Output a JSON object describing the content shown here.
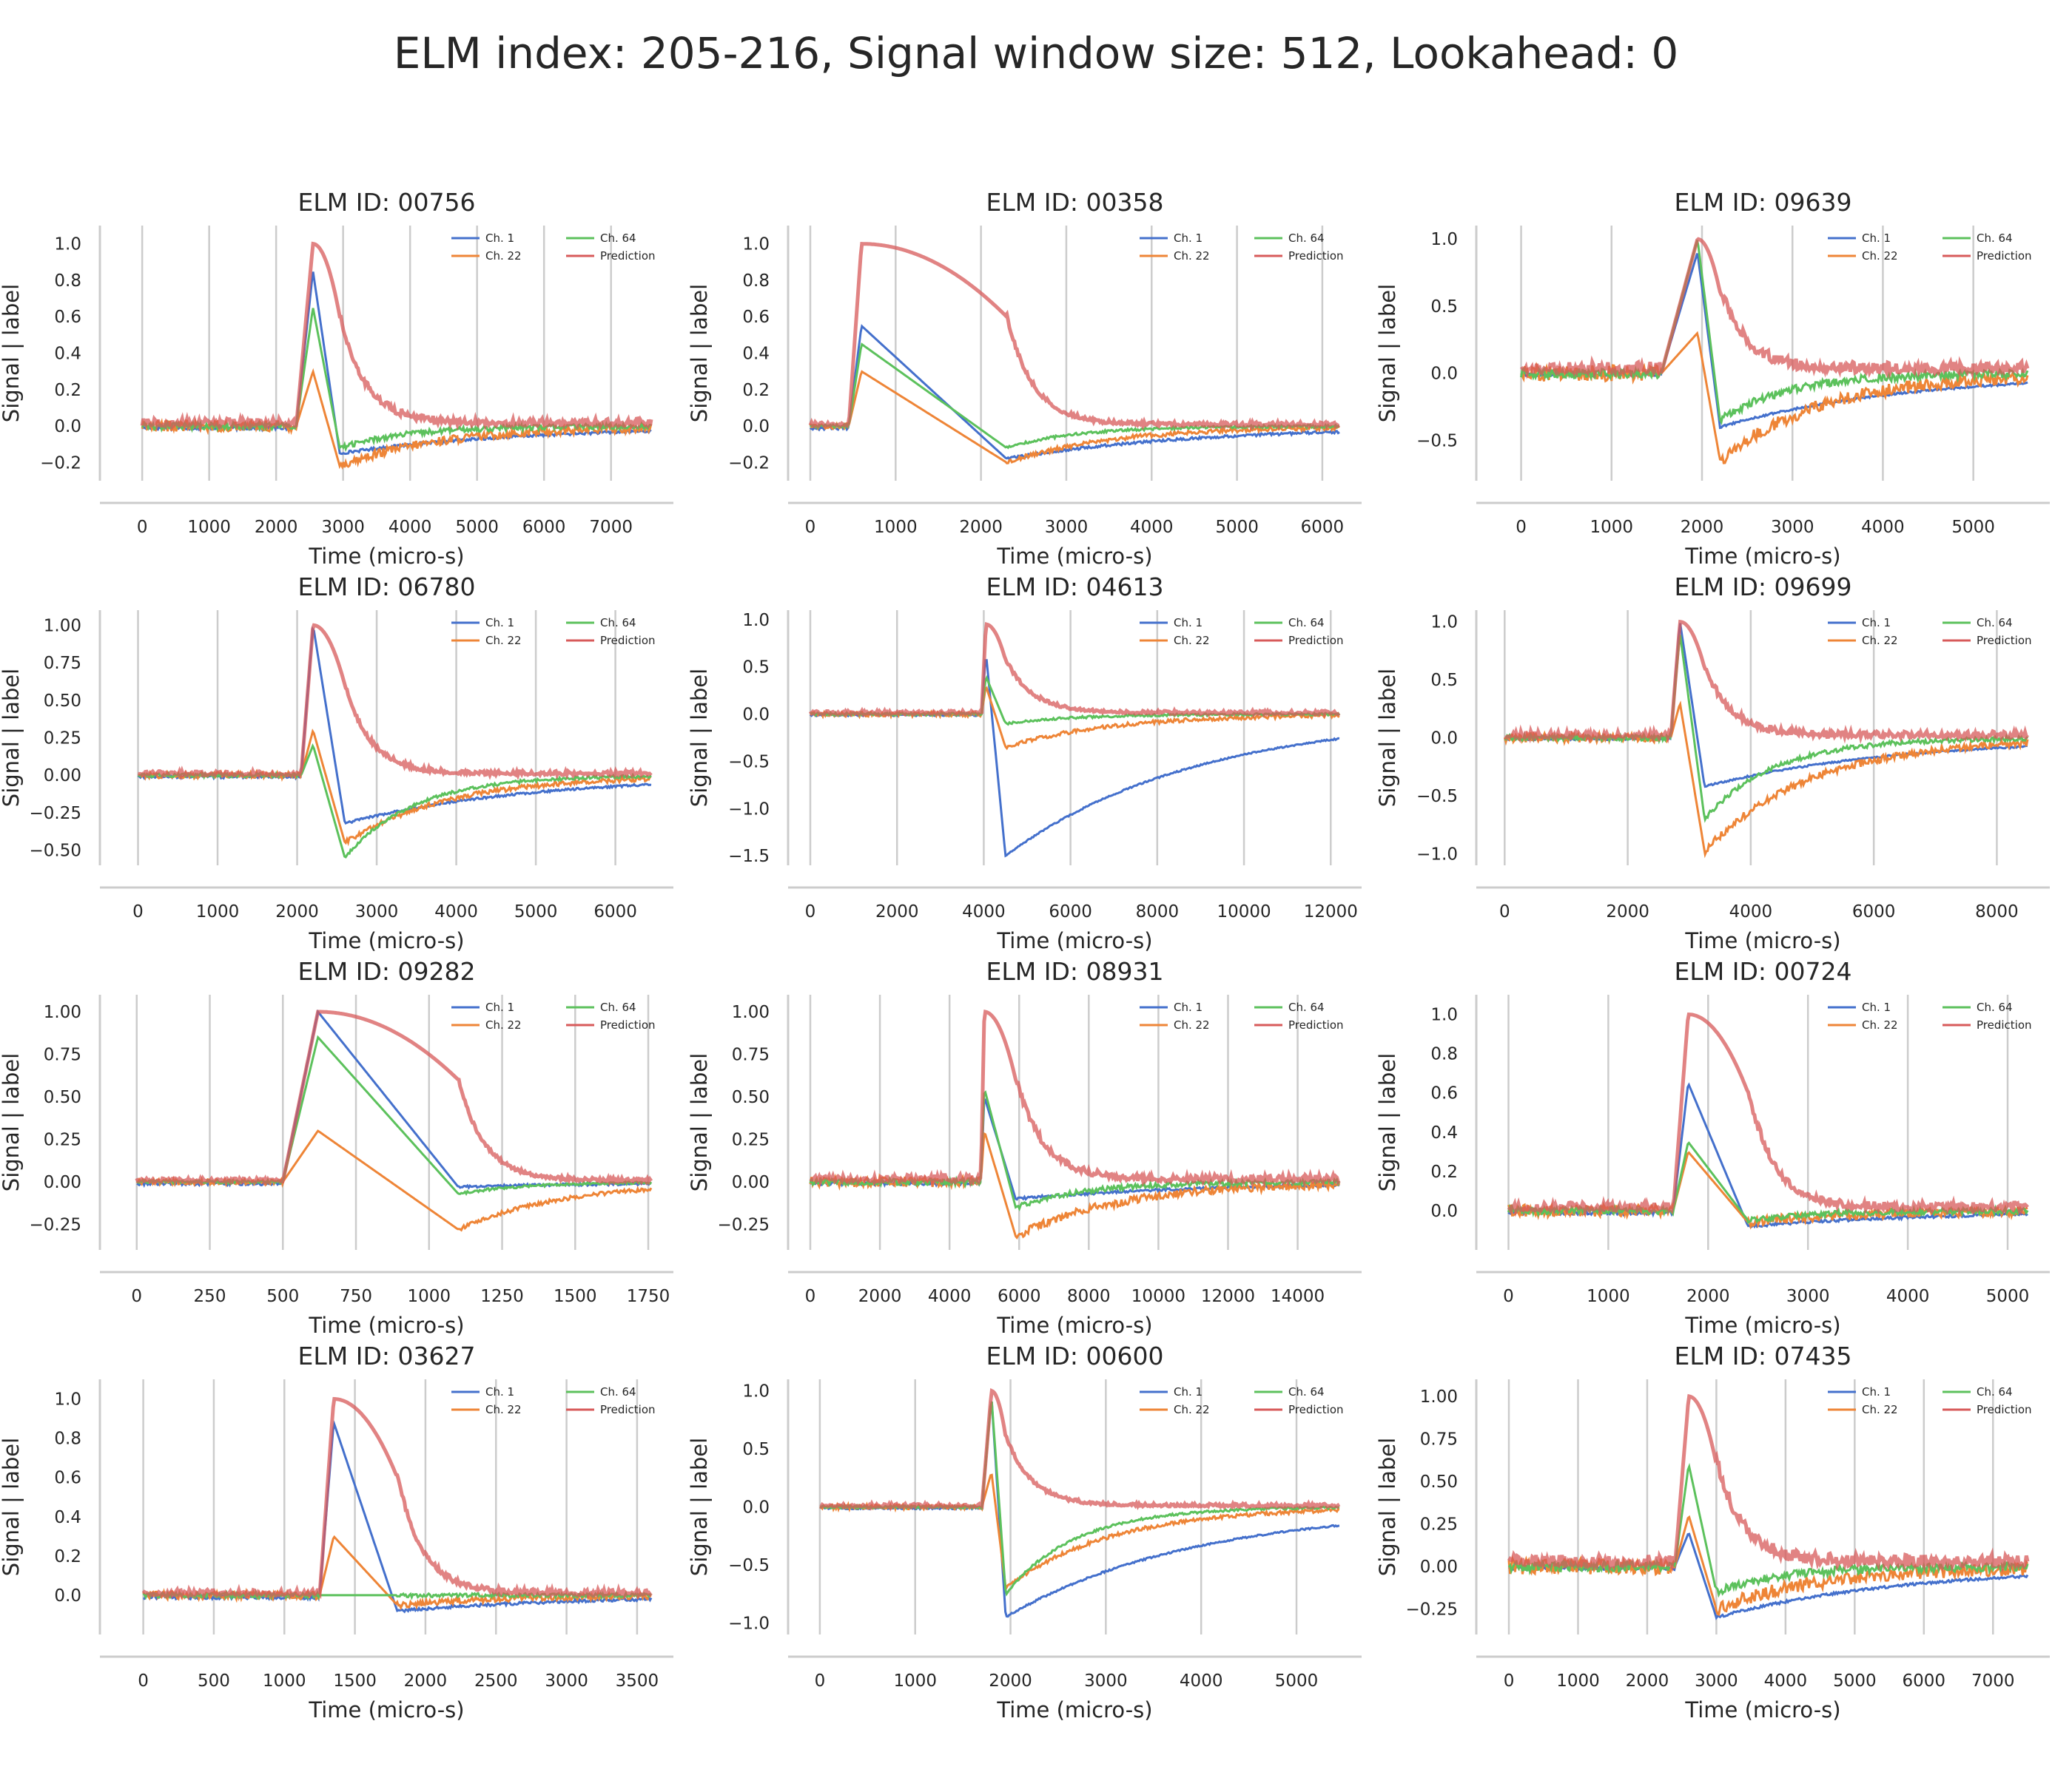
{
  "figure": {
    "suptitle": "ELM index: 205-216, Signal window size: 512, Lookahead: 0"
  },
  "colors": {
    "ch1": "#4470cc",
    "ch22": "#ee8537",
    "ch64": "#5cc15c",
    "prediction": "#d75a5a",
    "grid": "#cccccc",
    "spine": "#cccccc"
  },
  "chart_data": [
    {
      "type": "line",
      "title": "ELM ID: 00756",
      "xlabel": "Time (micro-s)",
      "ylabel": "Signal | label",
      "xlim": [
        -300,
        7600
      ],
      "ylim": [
        -0.3,
        1.1
      ],
      "xticks": [
        0,
        1000,
        2000,
        3000,
        4000,
        5000,
        6000,
        7000
      ],
      "yticks": [
        -0.2,
        0.0,
        0.2,
        0.4,
        0.6,
        0.8,
        1.0
      ],
      "ytick_labels": [
        "−0.2",
        "0.0",
        "0.2",
        "0.4",
        "0.6",
        "0.8",
        "1.0"
      ],
      "legend": [
        "Ch. 1",
        "Ch. 22",
        "Ch. 64",
        "Prediction"
      ],
      "elm_start": 2300,
      "elm_peak": 2550,
      "elm_end": 2950,
      "series": {
        "ch1_peak": 0.85,
        "ch1_trough": -0.15,
        "ch22_trough": -0.22,
        "ch64_peak": 0.65,
        "ch64_trough": -0.12,
        "prediction_peak": 1.0,
        "baseline_noise": 0.06
      }
    },
    {
      "type": "line",
      "title": "ELM ID: 00358",
      "xlabel": "Time (micro-s)",
      "ylabel": "Signal | label",
      "xlim": [
        0,
        6200
      ],
      "ylim": [
        -0.3,
        1.1
      ],
      "xticks": [
        0,
        1000,
        2000,
        3000,
        4000,
        5000,
        6000
      ],
      "yticks": [
        -0.2,
        0.0,
        0.2,
        0.4,
        0.6,
        0.8,
        1.0
      ],
      "ytick_labels": [
        "−0.2",
        "0.0",
        "0.2",
        "0.4",
        "0.6",
        "0.8",
        "1.0"
      ],
      "legend": [
        "Ch. 1",
        "Ch. 22",
        "Ch. 64",
        "Prediction"
      ],
      "elm_start": 450,
      "elm_peak": 600,
      "elm_end": 2300,
      "series": {
        "ch1_peak": 0.55,
        "ch1_trough": -0.18,
        "ch22_trough": -0.2,
        "ch64_peak": 0.45,
        "ch64_trough": -0.12,
        "prediction_peak": 1.0,
        "baseline_noise": 0.03
      }
    },
    {
      "type": "line",
      "title": "ELM ID: 09639",
      "xlabel": "Time (micro-s)",
      "ylabel": "Signal | label",
      "xlim": [
        -250,
        5600
      ],
      "ylim": [
        -0.8,
        1.1
      ],
      "xticks": [
        0,
        1000,
        2000,
        3000,
        4000,
        5000
      ],
      "yticks": [
        -0.5,
        0.0,
        0.5,
        1.0
      ],
      "ytick_labels": [
        "−0.5",
        "0.0",
        "0.5",
        "1.0"
      ],
      "legend": [
        "Ch. 1",
        "Ch. 22",
        "Ch. 64",
        "Prediction"
      ],
      "elm_start": 1550,
      "elm_peak": 1950,
      "elm_end": 2200,
      "series": {
        "ch1_peak": 0.9,
        "ch1_trough": -0.4,
        "ch22_trough": -0.65,
        "ch64_peak": 1.0,
        "ch64_trough": -0.35,
        "prediction_peak": 1.0,
        "baseline_noise": 0.12
      }
    },
    {
      "type": "line",
      "title": "ELM ID: 06780",
      "xlabel": "Time (micro-s)",
      "ylabel": "Signal | label",
      "xlim": [
        -200,
        6450
      ],
      "ylim": [
        -0.6,
        1.1
      ],
      "xticks": [
        0,
        1000,
        2000,
        3000,
        4000,
        5000,
        6000
      ],
      "yticks": [
        -0.5,
        -0.25,
        0.0,
        0.25,
        0.5,
        0.75,
        1.0
      ],
      "ytick_labels": [
        "−0.50",
        "−0.25",
        "0.00",
        "0.25",
        "0.50",
        "0.75",
        "1.00"
      ],
      "legend": [
        "Ch. 1",
        "Ch. 22",
        "Ch. 64",
        "Prediction"
      ],
      "elm_start": 2050,
      "elm_peak": 2200,
      "elm_end": 2600,
      "series": {
        "ch1_peak": 1.0,
        "ch1_trough": -0.32,
        "ch22_trough": -0.45,
        "ch64_peak": 0.2,
        "ch64_trough": -0.55,
        "prediction_peak": 1.0,
        "baseline_noise": 0.04
      }
    },
    {
      "type": "line",
      "title": "ELM ID: 04613",
      "xlabel": "Time (micro-s)",
      "ylabel": "Signal | label",
      "xlim": [
        0,
        12200
      ],
      "ylim": [
        -1.6,
        1.1
      ],
      "xticks": [
        0,
        2000,
        4000,
        6000,
        8000,
        10000,
        12000
      ],
      "yticks": [
        -1.5,
        -1.0,
        -0.5,
        0.0,
        0.5,
        1.0
      ],
      "ytick_labels": [
        "−1.5",
        "−1.0",
        "−0.5",
        "0.0",
        "0.5",
        "1.0"
      ],
      "legend": [
        "Ch. 1",
        "Ch. 22",
        "Ch. 64",
        "Prediction"
      ],
      "elm_start": 3950,
      "elm_peak": 4050,
      "elm_end": 4500,
      "series": {
        "ch1_peak": 0.65,
        "ch1_trough": -1.5,
        "ch22_trough": -0.35,
        "ch64_peak": 0.4,
        "ch64_trough": -0.1,
        "prediction_peak": 0.95,
        "baseline_noise": 0.05
      }
    },
    {
      "type": "line",
      "title": "ELM ID: 09699",
      "xlabel": "Time (micro-s)",
      "ylabel": "Signal | label",
      "xlim": [
        -100,
        8500
      ],
      "ylim": [
        -1.1,
        1.1
      ],
      "xticks": [
        0,
        2000,
        4000,
        6000,
        8000
      ],
      "yticks": [
        -1.0,
        -0.5,
        0.0,
        0.5,
        1.0
      ],
      "ytick_labels": [
        "−1.0",
        "−0.5",
        "0.0",
        "0.5",
        "1.0"
      ],
      "legend": [
        "Ch. 1",
        "Ch. 22",
        "Ch. 64",
        "Prediction"
      ],
      "elm_start": 2700,
      "elm_peak": 2850,
      "elm_end": 3250,
      "series": {
        "ch1_peak": 1.0,
        "ch1_trough": -0.42,
        "ch22_trough": -0.98,
        "ch64_peak": 0.9,
        "ch64_trough": -0.7,
        "prediction_peak": 1.0,
        "baseline_noise": 0.08
      }
    },
    {
      "type": "line",
      "title": "ELM ID: 09282",
      "xlabel": "Time (micro-s)",
      "ylabel": "Signal | label",
      "xlim": [
        -50,
        1760
      ],
      "ylim": [
        -0.4,
        1.1
      ],
      "xticks": [
        0,
        250,
        500,
        750,
        1000,
        1250,
        1500,
        1750
      ],
      "yticks": [
        -0.25,
        0.0,
        0.25,
        0.5,
        0.75,
        1.0
      ],
      "ytick_labels": [
        "−0.25",
        "0.00",
        "0.25",
        "0.50",
        "0.75",
        "1.00"
      ],
      "legend": [
        "Ch. 1",
        "Ch. 22",
        "Ch. 64",
        "Prediction"
      ],
      "elm_start": 500,
      "elm_peak": 620,
      "elm_end": 1100,
      "series": {
        "ch1_peak": 1.0,
        "ch1_trough": -0.03,
        "ch22_trough": -0.28,
        "ch64_peak": 0.85,
        "ch64_trough": -0.07,
        "prediction_peak": 1.0,
        "baseline_noise": 0.03
      }
    },
    {
      "type": "line",
      "title": "ELM ID: 08931",
      "xlabel": "Time (micro-s)",
      "ylabel": "Signal | label",
      "xlim": [
        0,
        15200
      ],
      "ylim": [
        -0.4,
        1.1
      ],
      "xticks": [
        0,
        2000,
        4000,
        6000,
        8000,
        10000,
        12000,
        14000
      ],
      "yticks": [
        -0.25,
        0.0,
        0.25,
        0.5,
        0.75,
        1.0
      ],
      "ytick_labels": [
        "−0.25",
        "0.00",
        "0.25",
        "0.50",
        "0.75",
        "1.00"
      ],
      "legend": [
        "Ch. 1",
        "Ch. 22",
        "Ch. 64",
        "Prediction"
      ],
      "elm_start": 4900,
      "elm_peak": 5000,
      "elm_end": 5900,
      "series": {
        "ch1_peak": 0.5,
        "ch1_trough": -0.1,
        "ch22_trough": -0.32,
        "ch64_peak": 0.55,
        "ch64_trough": -0.15,
        "prediction_peak": 1.0,
        "baseline_noise": 0.06
      }
    },
    {
      "type": "line",
      "title": "ELM ID: 00724",
      "xlabel": "Time (micro-s)",
      "ylabel": "Signal | label",
      "xlim": [
        -100,
        5200
      ],
      "ylim": [
        -0.2,
        1.1
      ],
      "xticks": [
        0,
        1000,
        2000,
        3000,
        4000,
        5000
      ],
      "yticks": [
        0.0,
        0.2,
        0.4,
        0.6,
        0.8,
        1.0
      ],
      "ytick_labels": [
        "0.0",
        "0.2",
        "0.4",
        "0.6",
        "0.8",
        "1.0"
      ],
      "legend": [
        "Ch. 1",
        "Ch. 22",
        "Ch. 64",
        "Prediction"
      ],
      "elm_start": 1650,
      "elm_peak": 1800,
      "elm_end": 2400,
      "series": {
        "ch1_peak": 0.65,
        "ch1_trough": -0.08,
        "ch22_trough": -0.06,
        "ch64_peak": 0.35,
        "ch64_trough": -0.05,
        "prediction_peak": 1.0,
        "baseline_noise": 0.06
      }
    },
    {
      "type": "line",
      "title": "ELM ID: 03627",
      "xlabel": "Time (micro-s)",
      "ylabel": "Signal | label",
      "xlim": [
        -150,
        3600
      ],
      "ylim": [
        -0.2,
        1.1
      ],
      "xticks": [
        0,
        500,
        1000,
        1500,
        2000,
        2500,
        3000,
        3500
      ],
      "yticks": [
        0.0,
        0.2,
        0.4,
        0.6,
        0.8,
        1.0
      ],
      "ytick_labels": [
        "0.0",
        "0.2",
        "0.4",
        "0.6",
        "0.8",
        "1.0"
      ],
      "legend": [
        "Ch. 1",
        "Ch. 22",
        "Ch. 64",
        "Prediction"
      ],
      "elm_start": 1250,
      "elm_peak": 1350,
      "elm_end": 1800,
      "series": {
        "ch1_peak": 0.88,
        "ch1_trough": -0.08,
        "ch22_trough": -0.05,
        "ch64_peak": 0.0,
        "ch64_trough": 0.0,
        "prediction_peak": 1.0,
        "baseline_noise": 0.04
      }
    },
    {
      "type": "line",
      "title": "ELM ID: 00600",
      "xlabel": "Time (micro-s)",
      "ylabel": "Signal | label",
      "xlim": [
        -100,
        5450
      ],
      "ylim": [
        -1.1,
        1.1
      ],
      "xticks": [
        0,
        1000,
        2000,
        3000,
        4000,
        5000
      ],
      "yticks": [
        -1.0,
        -0.5,
        0.0,
        0.5,
        1.0
      ],
      "ytick_labels": [
        "−1.0",
        "−0.5",
        "0.0",
        "0.5",
        "1.0"
      ],
      "legend": [
        "Ch. 1",
        "Ch. 22",
        "Ch. 64",
        "Prediction"
      ],
      "elm_start": 1700,
      "elm_peak": 1800,
      "elm_end": 1950,
      "series": {
        "ch1_peak": 0.95,
        "ch1_trough": -0.95,
        "ch22_trough": -0.7,
        "ch64_peak": 0.95,
        "ch64_trough": -0.75,
        "prediction_peak": 1.0,
        "baseline_noise": 0.04
      }
    },
    {
      "type": "line",
      "title": "ELM ID: 07435",
      "xlabel": "Time (micro-s)",
      "ylabel": "Signal | label",
      "xlim": [
        -150,
        7500
      ],
      "ylim": [
        -0.4,
        1.1
      ],
      "xticks": [
        0,
        1000,
        2000,
        3000,
        4000,
        5000,
        6000,
        7000
      ],
      "yticks": [
        -0.25,
        0.0,
        0.25,
        0.5,
        0.75,
        1.0
      ],
      "ytick_labels": [
        "−0.25",
        "0.00",
        "0.25",
        "0.50",
        "0.75",
        "1.00"
      ],
      "legend": [
        "Ch. 1",
        "Ch. 22",
        "Ch. 64",
        "Prediction"
      ],
      "elm_start": 2400,
      "elm_peak": 2600,
      "elm_end": 3000,
      "series": {
        "ch1_peak": 0.2,
        "ch1_trough": -0.3,
        "ch22_trough": -0.25,
        "ch64_peak": 0.6,
        "ch64_trough": -0.15,
        "prediction_peak": 1.0,
        "baseline_noise": 0.1
      }
    }
  ]
}
